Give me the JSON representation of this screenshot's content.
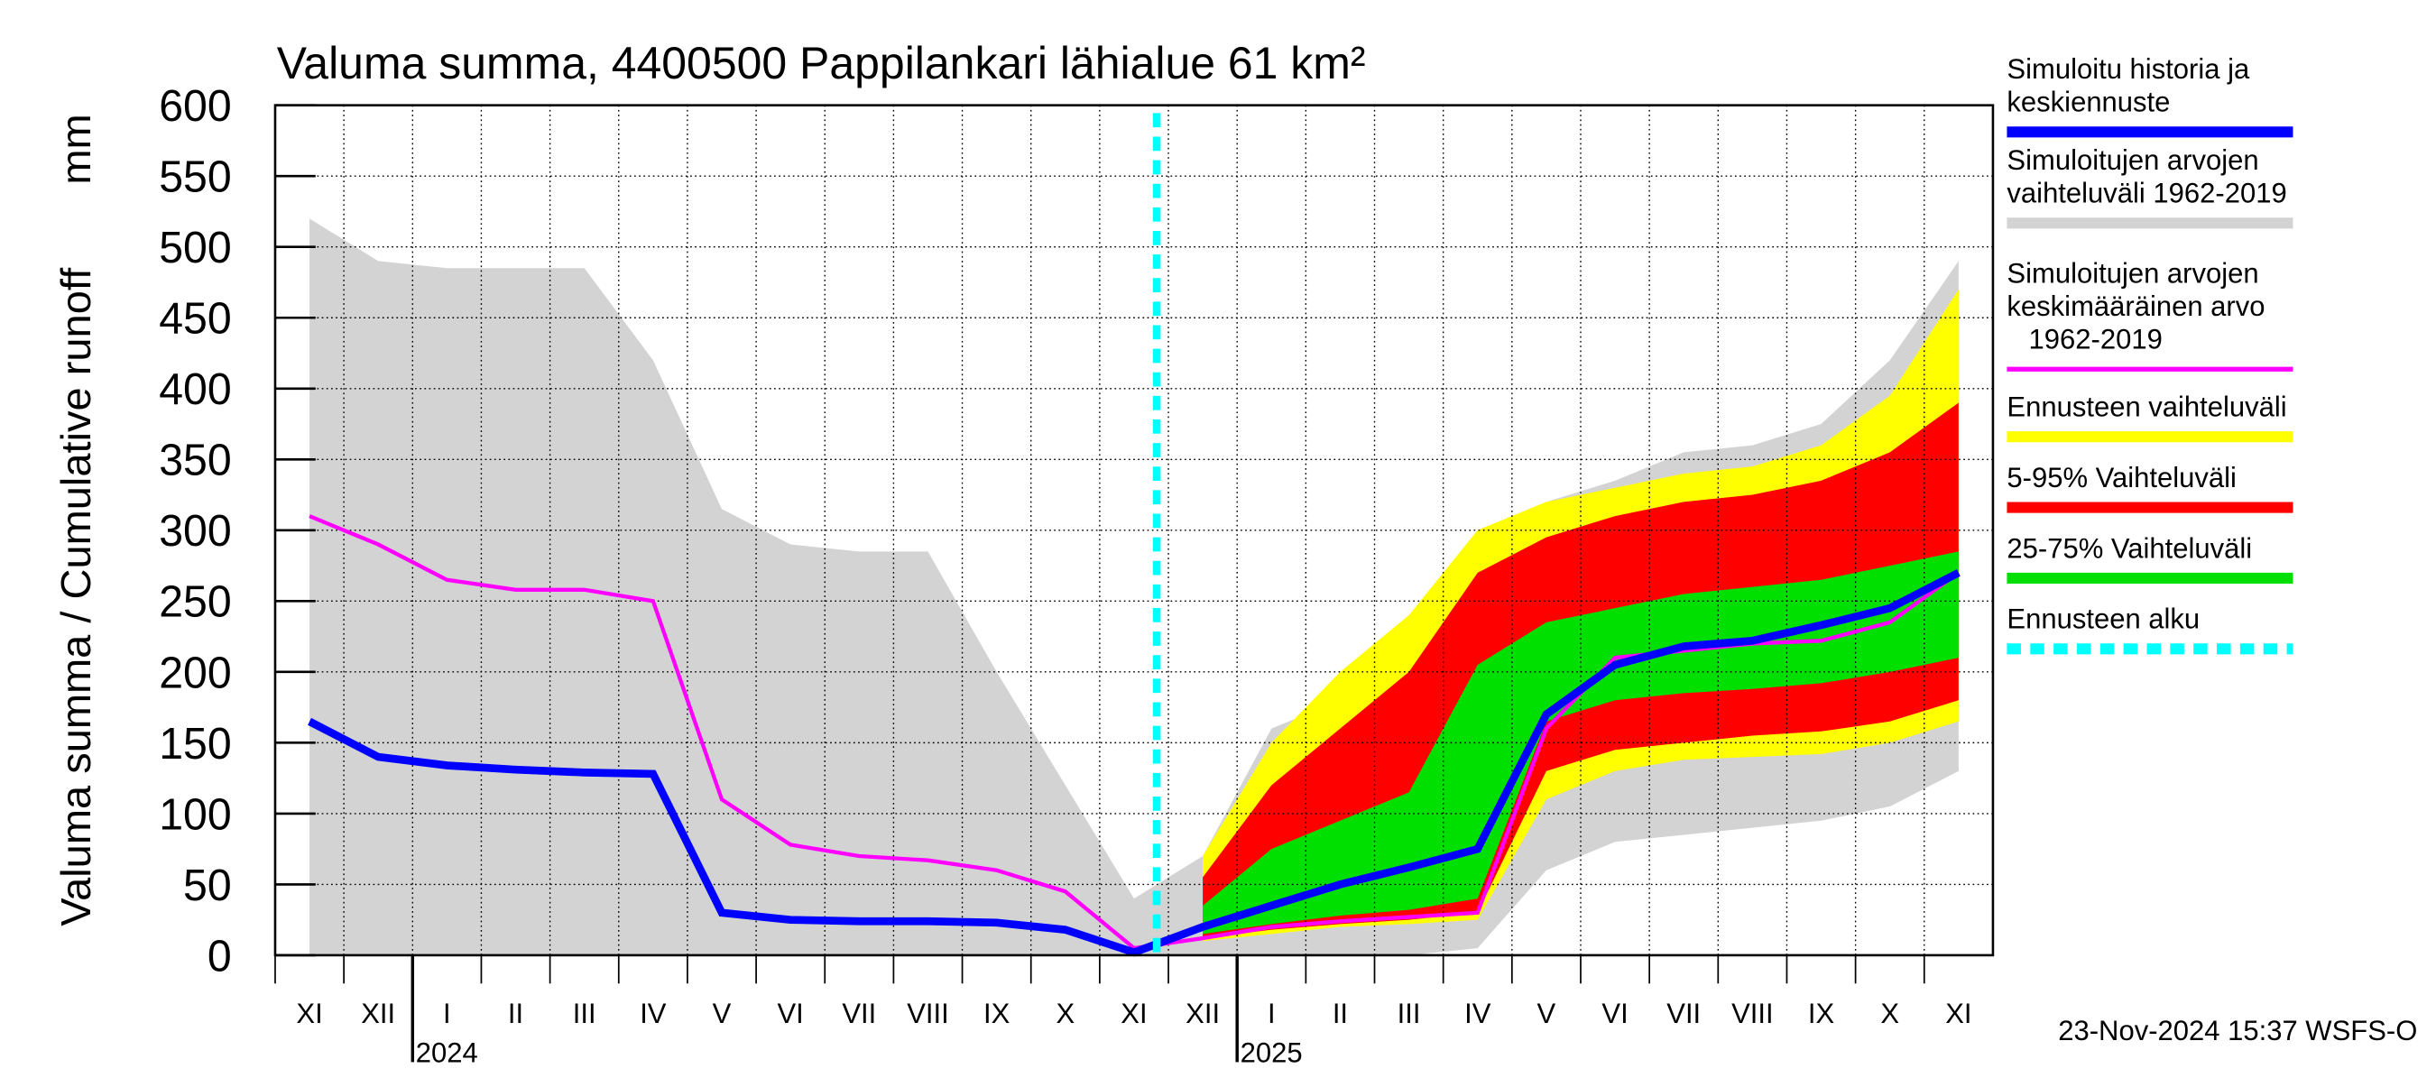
{
  "chart_data": {
    "type": "band-line",
    "title": "Valuma summa, 4400500 Pappilankari lähialue 61 km²",
    "ylabel": "Valuma summa / Cumulative runoff",
    "yunit": "mm",
    "footer": "23-Nov-2024 15:37 WSFS-O",
    "categories": [
      "XI",
      "XII",
      "I",
      "II",
      "III",
      "IV",
      "V",
      "VI",
      "VII",
      "VIII",
      "IX",
      "X",
      "XI",
      "XII",
      "I",
      "II",
      "III",
      "IV",
      "V",
      "VI",
      "VII",
      "VIII",
      "IX",
      "X",
      "XI"
    ],
    "years": [
      {
        "label": "2024",
        "category": 2
      },
      {
        "label": "2025",
        "category": 14
      }
    ],
    "ylim": [
      0,
      600
    ],
    "yticks": [
      0,
      50,
      100,
      150,
      200,
      250,
      300,
      350,
      400,
      450,
      500,
      550,
      600
    ],
    "grid": true,
    "bands": [
      {
        "name": [
          "Simuloitujen arvojen",
          "vaihteluväli 1962-2019"
        ],
        "color": "#d3d3d3",
        "high": [
          520,
          490,
          485,
          485,
          485,
          420,
          315,
          290,
          285,
          285,
          200,
          120,
          40,
          70,
          160,
          180,
          200,
          300,
          320,
          335,
          355,
          360,
          375,
          420,
          490
        ],
        "low": [
          0,
          0,
          0,
          0,
          0,
          0,
          0,
          0,
          0,
          0,
          0,
          0,
          0,
          0,
          0,
          0,
          0,
          5,
          60,
          80,
          85,
          90,
          95,
          105,
          130
        ]
      },
      {
        "name": [
          "Ennusteen vaihteluväli"
        ],
        "color": "#ffff00",
        "high": [
          null,
          null,
          null,
          null,
          null,
          null,
          null,
          null,
          null,
          null,
          null,
          null,
          null,
          70,
          150,
          200,
          240,
          300,
          320,
          330,
          340,
          345,
          360,
          395,
          470
        ],
        "low": [
          null,
          null,
          null,
          null,
          null,
          null,
          null,
          null,
          null,
          null,
          null,
          null,
          null,
          10,
          15,
          20,
          22,
          25,
          110,
          130,
          138,
          140,
          142,
          150,
          165
        ]
      },
      {
        "name": [
          "5-95% Vaihteluväli"
        ],
        "color": "#ff0000",
        "high": [
          null,
          null,
          null,
          null,
          null,
          null,
          null,
          null,
          null,
          null,
          null,
          null,
          null,
          55,
          120,
          160,
          200,
          270,
          295,
          310,
          320,
          325,
          335,
          355,
          390
        ],
        "low": [
          null,
          null,
          null,
          null,
          null,
          null,
          null,
          null,
          null,
          null,
          null,
          null,
          null,
          12,
          18,
          22,
          25,
          30,
          130,
          145,
          150,
          155,
          158,
          165,
          180
        ]
      },
      {
        "name": [
          "25-75% Vaihteluväli"
        ],
        "color": "#00e000",
        "high": [
          null,
          null,
          null,
          null,
          null,
          null,
          null,
          null,
          null,
          null,
          null,
          null,
          null,
          35,
          75,
          95,
          115,
          205,
          235,
          245,
          255,
          260,
          265,
          275,
          285
        ],
        "low": [
          null,
          null,
          null,
          null,
          null,
          null,
          null,
          null,
          null,
          null,
          null,
          null,
          null,
          15,
          22,
          28,
          32,
          40,
          165,
          180,
          185,
          188,
          192,
          200,
          210
        ]
      }
    ],
    "series": [
      {
        "name": [
          "Simuloitujen arvojen",
          "keskimääräinen arvo",
          "1962-2019"
        ],
        "color": "#ff00ff",
        "values": [
          310,
          290,
          265,
          258,
          258,
          250,
          110,
          78,
          70,
          67,
          60,
          45,
          5,
          12,
          20,
          24,
          27,
          30,
          160,
          210,
          215,
          220,
          222,
          235,
          270
        ]
      },
      {
        "name": [
          "Simuloitu historia ja",
          "keskiennuste"
        ],
        "color": "#0000ff",
        "values": [
          165,
          140,
          134,
          131,
          129,
          128,
          30,
          25,
          24,
          24,
          23,
          18,
          2,
          20,
          35,
          50,
          62,
          75,
          170,
          205,
          218,
          222,
          233,
          245,
          270
        ]
      }
    ],
    "forecast_start": {
      "name": [
        "Ennusteen alku"
      ],
      "color": "#00ffff"
    }
  }
}
